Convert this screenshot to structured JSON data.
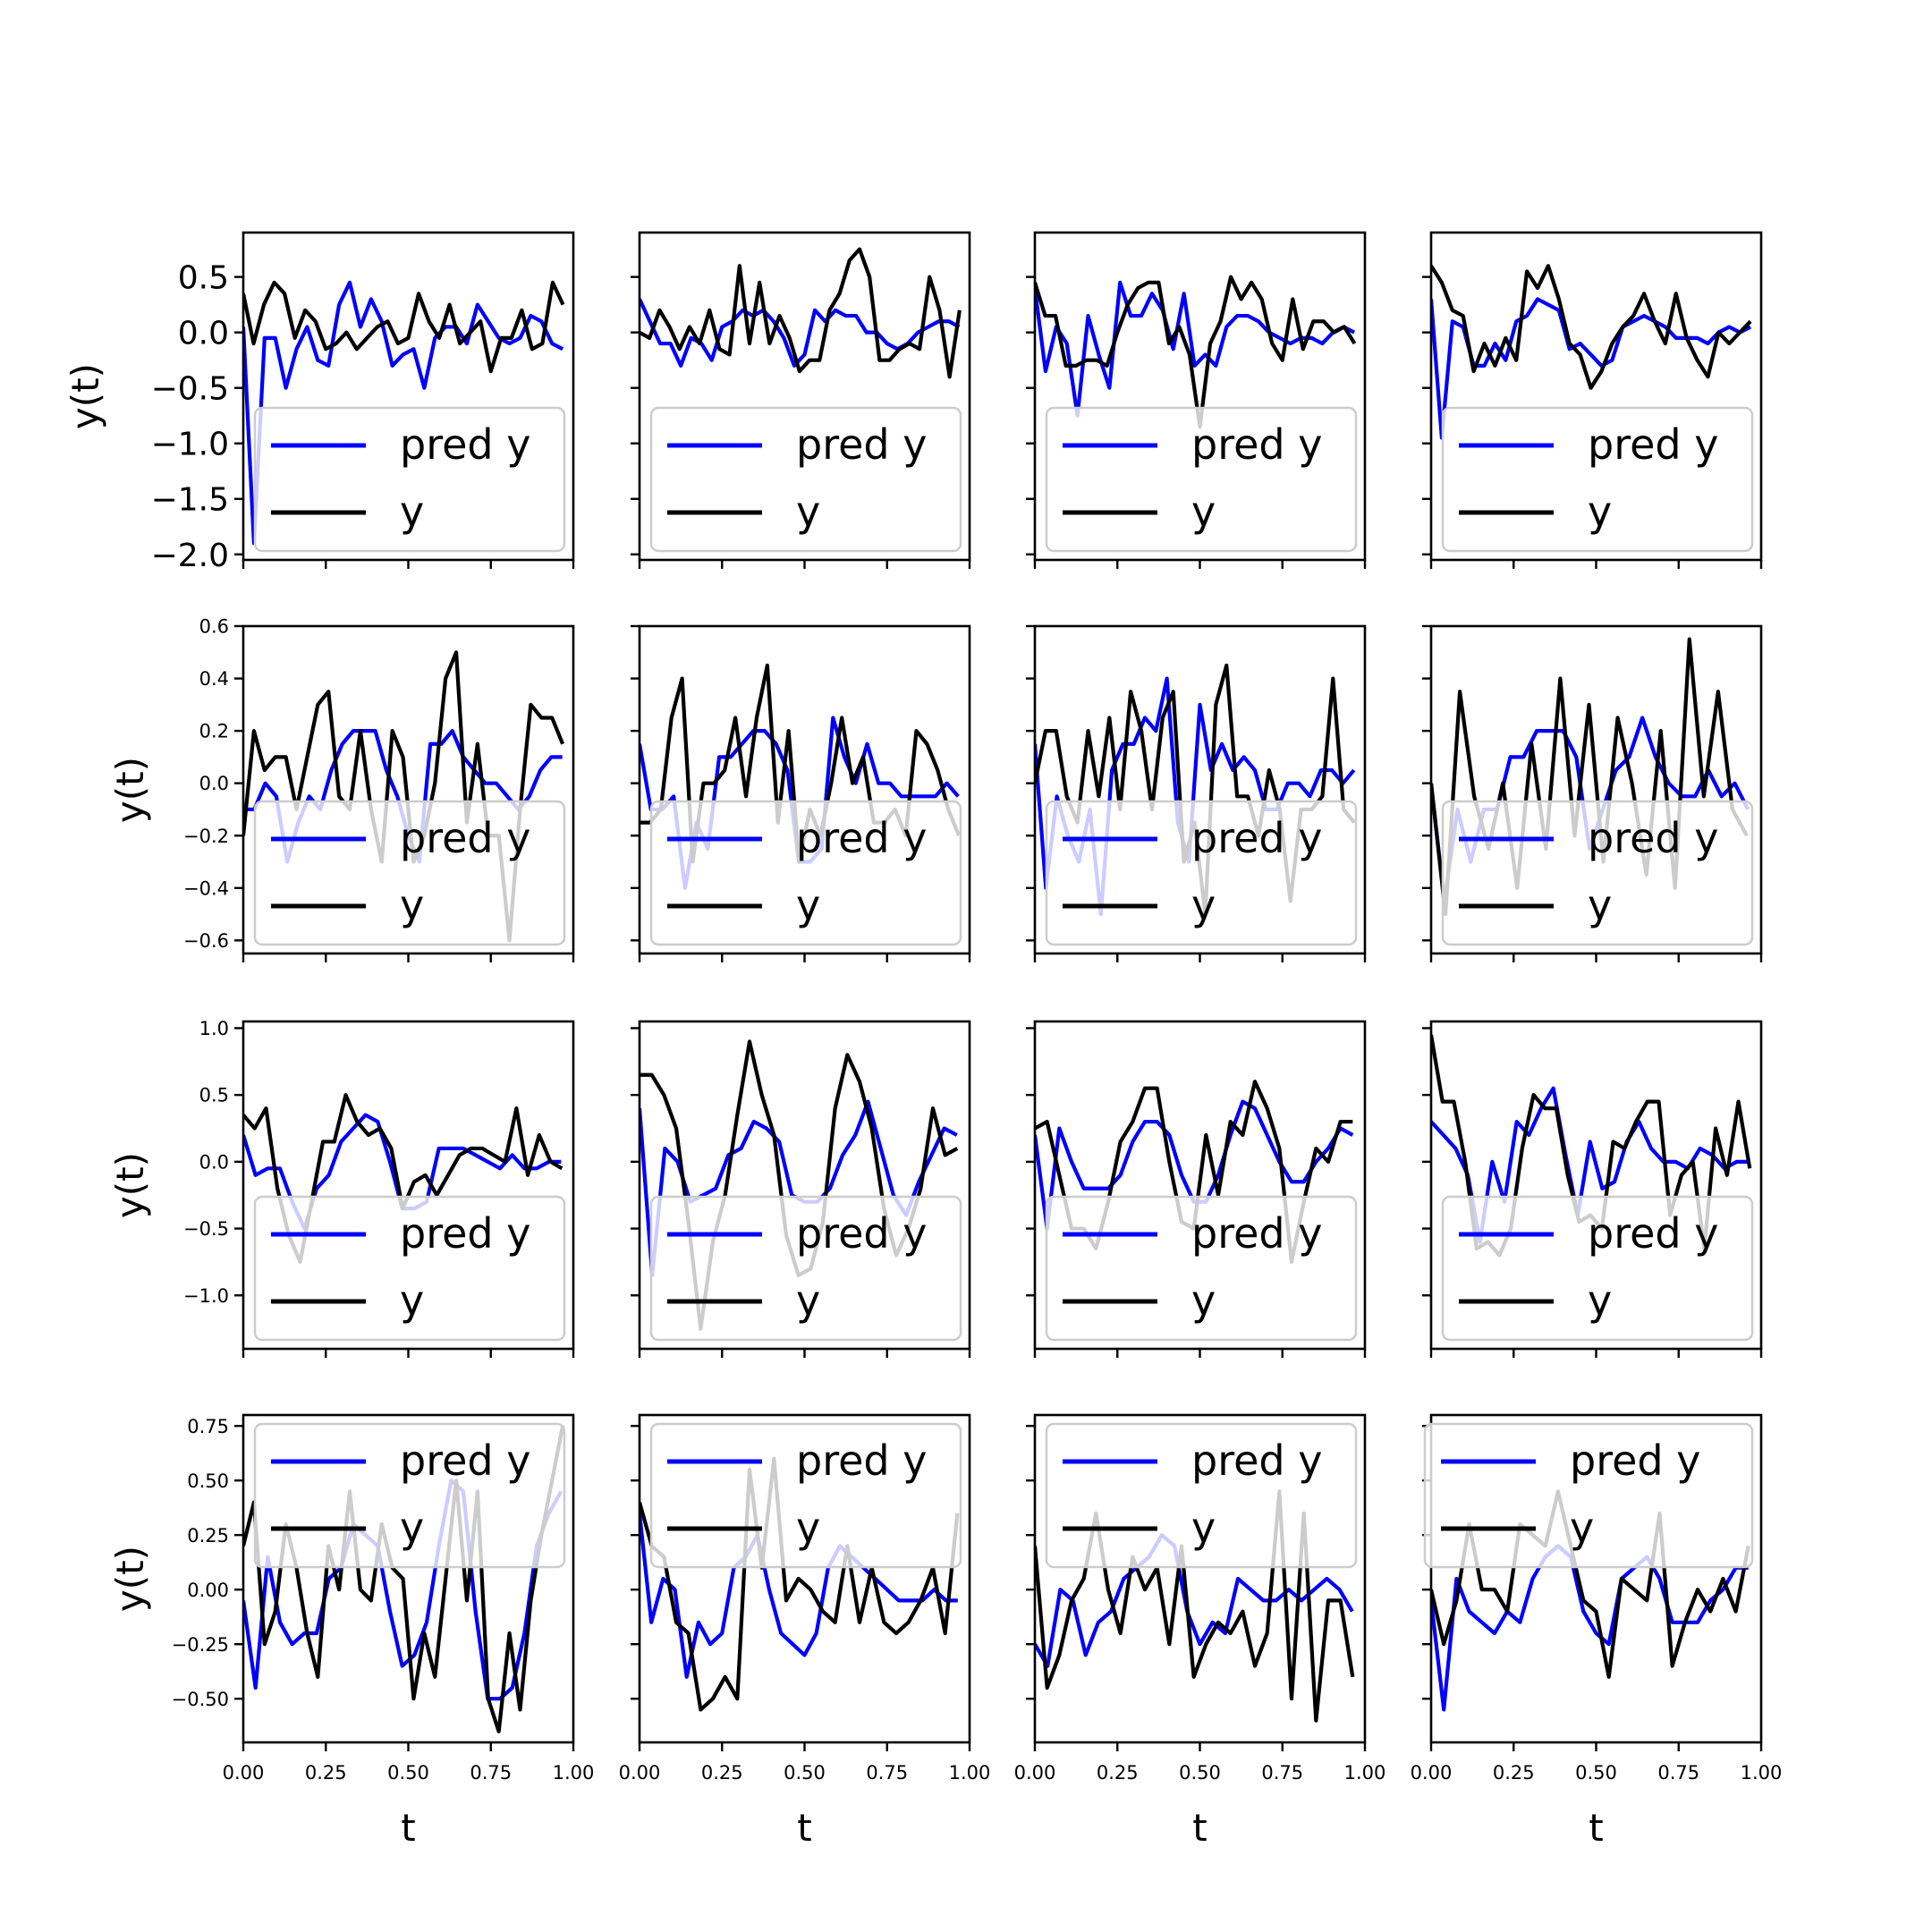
{
  "chart_data": {
    "type": "line",
    "layout": "4x4 grid of line subplots, shared x axis per column, shared y axis per row",
    "xlabel": "t",
    "ylabel": "y(t)",
    "xlim": [
      0,
      1
    ],
    "xticks": [
      "0.00",
      "0.25",
      "0.50",
      "0.75",
      "1.00"
    ],
    "legend": {
      "placement": "lower right",
      "entries": [
        {
          "label": "pred y",
          "color": "#0000ff"
        },
        {
          "label": "y",
          "color": "#000000"
        }
      ]
    },
    "rows": [
      {
        "ylim": [
          -2.05,
          0.9
        ],
        "ticks": [
          0.5,
          0.0,
          -0.5,
          -1.0,
          -1.5,
          -2.0
        ],
        "tick_labels": [
          "0.5",
          "0.0",
          "−0.5",
          "−1.0",
          "−1.5",
          "−2.0"
        ],
        "legend_placement": "lower right"
      },
      {
        "ylim": [
          -0.65,
          0.6
        ],
        "ticks": [
          0.6,
          0.4,
          0.2,
          0.0,
          -0.2,
          -0.4,
          -0.6
        ],
        "tick_labels": [
          "0.6",
          "0.4",
          "0.2",
          "0.0",
          "−0.2",
          "−0.4",
          "−0.6"
        ],
        "legend_placement": "lower right"
      },
      {
        "ylim": [
          -1.4,
          1.05
        ],
        "ticks": [
          1.0,
          0.5,
          0.0,
          -0.5,
          -1.0
        ],
        "tick_labels": [
          "1.0",
          "0.5",
          "0.0",
          "−0.5",
          "−1.0"
        ],
        "legend_placement": "lower right"
      },
      {
        "ylim": [
          -0.7,
          0.8
        ],
        "ticks": [
          0.75,
          0.5,
          0.25,
          0.0,
          -0.25,
          -0.5
        ],
        "tick_labels": [
          "0.75",
          "0.50",
          "0.25",
          "0.00",
          "−0.25",
          "−0.50"
        ],
        "legend_placement": "upper right"
      }
    ],
    "panels": [
      {
        "row": 0,
        "col": 0,
        "pred_y": [
          0.05,
          -1.9,
          -0.05,
          -0.05,
          -0.5,
          -0.15,
          0.05,
          -0.25,
          -0.3,
          0.25,
          0.45,
          0.05,
          0.3,
          0.1,
          -0.3,
          -0.2,
          -0.15,
          -0.5,
          -0.05,
          0.05,
          0.05,
          -0.1,
          0.25,
          0.1,
          -0.05,
          -0.1,
          -0.05,
          0.15,
          0.1,
          -0.1,
          -0.15
        ],
        "y": [
          0.35,
          -0.1,
          0.25,
          0.45,
          0.35,
          -0.05,
          0.2,
          0.1,
          -0.15,
          -0.1,
          0.0,
          -0.15,
          -0.05,
          0.05,
          0.1,
          -0.1,
          -0.05,
          0.35,
          0.1,
          -0.05,
          0.25,
          -0.1,
          0.0,
          0.1,
          -0.35,
          -0.05,
          -0.05,
          0.2,
          -0.15,
          -0.1,
          0.45,
          0.25
        ]
      },
      {
        "row": 0,
        "col": 1,
        "pred_y": [
          0.3,
          0.1,
          -0.1,
          -0.1,
          -0.3,
          -0.05,
          -0.1,
          -0.25,
          0.05,
          0.1,
          0.2,
          0.15,
          0.2,
          0.1,
          -0.05,
          -0.3,
          -0.2,
          0.2,
          0.1,
          0.2,
          0.15,
          0.15,
          0.0,
          0.0,
          -0.1,
          -0.15,
          -0.1,
          0.0,
          0.05,
          0.1,
          0.1,
          0.05
        ],
        "y": [
          0.0,
          -0.05,
          0.2,
          0.05,
          -0.15,
          0.05,
          -0.1,
          0.2,
          -0.15,
          -0.2,
          0.6,
          -0.1,
          0.45,
          -0.1,
          0.15,
          -0.05,
          -0.35,
          -0.25,
          -0.25,
          0.2,
          0.35,
          0.65,
          0.75,
          0.5,
          -0.25,
          -0.25,
          -0.15,
          -0.1,
          -0.15,
          0.5,
          0.2,
          -0.4,
          0.2
        ]
      },
      {
        "row": 0,
        "col": 2,
        "pred_y": [
          0.4,
          -0.35,
          0.05,
          -0.1,
          -0.75,
          0.15,
          -0.2,
          -0.5,
          0.45,
          0.15,
          0.15,
          0.35,
          0.2,
          -0.15,
          0.35,
          -0.3,
          -0.2,
          -0.3,
          0.05,
          0.15,
          0.15,
          0.1,
          0.0,
          -0.05,
          -0.1,
          -0.05,
          -0.05,
          -0.1,
          0.0,
          0.05,
          0.0
        ],
        "y": [
          0.45,
          0.15,
          0.15,
          -0.3,
          -0.3,
          -0.25,
          -0.25,
          -0.3,
          0.0,
          0.25,
          0.4,
          0.45,
          0.45,
          -0.1,
          0.05,
          -0.2,
          -0.85,
          -0.1,
          0.1,
          0.5,
          0.3,
          0.45,
          0.3,
          -0.1,
          -0.25,
          0.3,
          -0.15,
          0.1,
          0.1,
          0.0,
          0.05,
          -0.1
        ]
      },
      {
        "row": 0,
        "col": 3,
        "pred_y": [
          0.3,
          -0.95,
          0.1,
          0.05,
          -0.3,
          -0.3,
          -0.1,
          -0.25,
          0.1,
          0.15,
          0.3,
          0.25,
          0.2,
          -0.15,
          -0.1,
          -0.2,
          -0.3,
          -0.25,
          0.05,
          0.1,
          0.15,
          0.1,
          0.05,
          -0.05,
          -0.05,
          -0.05,
          -0.1,
          0.0,
          0.05,
          0.0,
          0.05
        ],
        "y": [
          0.6,
          0.45,
          0.2,
          0.15,
          -0.35,
          -0.1,
          -0.3,
          -0.05,
          -0.25,
          0.55,
          0.4,
          0.6,
          0.3,
          -0.1,
          -0.2,
          -0.5,
          -0.35,
          -0.1,
          0.05,
          0.15,
          0.35,
          0.1,
          -0.1,
          0.35,
          -0.05,
          -0.25,
          -0.4,
          0.0,
          -0.1,
          0.0,
          0.1
        ]
      },
      {
        "row": 1,
        "col": 0,
        "pred_y": [
          -0.1,
          -0.1,
          0.0,
          -0.05,
          -0.3,
          -0.15,
          -0.05,
          -0.1,
          0.05,
          0.15,
          0.2,
          0.2,
          0.2,
          0.05,
          -0.05,
          -0.2,
          -0.3,
          0.15,
          0.15,
          0.2,
          0.1,
          0.05,
          0.0,
          0.0,
          -0.05,
          -0.1,
          -0.05,
          0.05,
          0.1,
          0.1
        ],
        "y": [
          -0.2,
          0.2,
          0.05,
          0.1,
          0.1,
          -0.1,
          0.1,
          0.3,
          0.35,
          -0.05,
          -0.1,
          0.2,
          -0.1,
          -0.3,
          0.2,
          0.1,
          -0.3,
          -0.2,
          0.0,
          0.4,
          0.5,
          -0.15,
          0.15,
          -0.2,
          -0.2,
          -0.6,
          -0.1,
          0.3,
          0.25,
          0.25,
          0.15
        ]
      },
      {
        "row": 1,
        "col": 1,
        "pred_y": [
          0.15,
          -0.1,
          -0.1,
          -0.05,
          -0.4,
          -0.15,
          -0.25,
          0.1,
          0.1,
          0.15,
          0.2,
          0.2,
          0.15,
          0.05,
          -0.3,
          -0.3,
          -0.25,
          0.25,
          0.1,
          0.0,
          0.15,
          0.0,
          0.0,
          -0.05,
          -0.05,
          -0.05,
          -0.05,
          0.0,
          -0.05
        ],
        "y": [
          -0.15,
          -0.15,
          -0.1,
          0.25,
          0.4,
          -0.3,
          0.0,
          0.0,
          0.05,
          0.25,
          -0.05,
          0.25,
          0.45,
          -0.15,
          0.2,
          -0.3,
          -0.1,
          -0.2,
          0.0,
          0.25,
          0.0,
          0.1,
          -0.15,
          -0.15,
          -0.1,
          -0.2,
          0.2,
          0.15,
          0.05,
          -0.1,
          -0.2
        ]
      },
      {
        "row": 1,
        "col": 2,
        "pred_y": [
          0.15,
          -0.4,
          -0.05,
          -0.2,
          -0.3,
          -0.1,
          -0.5,
          0.05,
          0.15,
          0.15,
          0.25,
          0.2,
          0.4,
          -0.15,
          -0.3,
          0.3,
          0.05,
          0.15,
          0.05,
          0.1,
          0.05,
          -0.1,
          -0.1,
          0.0,
          0.0,
          -0.05,
          0.05,
          0.05,
          0.0,
          0.05
        ],
        "y": [
          0.0,
          0.2,
          0.2,
          -0.05,
          -0.15,
          0.2,
          -0.05,
          0.25,
          -0.1,
          0.35,
          0.2,
          -0.1,
          0.25,
          0.35,
          -0.3,
          -0.15,
          -0.5,
          0.3,
          0.45,
          -0.05,
          -0.05,
          -0.2,
          0.05,
          -0.1,
          -0.45,
          -0.1,
          -0.1,
          -0.05,
          0.4,
          -0.1,
          -0.15
        ]
      },
      {
        "row": 1,
        "col": 3,
        "pred_y": [
          0.0,
          -0.45,
          -0.1,
          -0.3,
          -0.1,
          -0.1,
          0.1,
          0.1,
          0.2,
          0.2,
          0.2,
          0.1,
          -0.25,
          -0.1,
          0.05,
          0.1,
          0.25,
          0.1,
          0.0,
          -0.05,
          -0.05,
          0.05,
          -0.05,
          0.0,
          -0.1
        ],
        "y": [
          0.0,
          -0.5,
          0.35,
          -0.05,
          -0.25,
          0.0,
          -0.4,
          0.15,
          -0.25,
          0.4,
          -0.2,
          0.3,
          -0.3,
          0.25,
          0.0,
          -0.35,
          0.2,
          -0.4,
          0.55,
          -0.05,
          0.35,
          -0.1,
          -0.2
        ]
      },
      {
        "row": 2,
        "col": 0,
        "pred_y": [
          0.2,
          -0.1,
          -0.05,
          -0.05,
          -0.3,
          -0.5,
          -0.2,
          -0.1,
          0.15,
          0.25,
          0.35,
          0.3,
          0.0,
          -0.35,
          -0.35,
          -0.3,
          0.1,
          0.1,
          0.1,
          0.05,
          0.0,
          -0.05,
          0.05,
          -0.05,
          -0.05,
          0.0,
          0.0
        ],
        "y": [
          0.35,
          0.25,
          0.4,
          -0.2,
          -0.55,
          -0.75,
          -0.3,
          0.15,
          0.15,
          0.5,
          0.3,
          0.2,
          0.25,
          0.1,
          -0.35,
          -0.15,
          -0.1,
          -0.25,
          -0.1,
          0.05,
          0.1,
          0.1,
          0.05,
          0.0,
          0.4,
          -0.1,
          0.2,
          0.0,
          -0.05
        ]
      },
      {
        "row": 2,
        "col": 1,
        "pred_y": [
          0.4,
          -0.85,
          0.1,
          0.0,
          -0.3,
          -0.25,
          -0.2,
          0.05,
          0.1,
          0.3,
          0.25,
          0.15,
          -0.25,
          -0.3,
          -0.3,
          -0.2,
          0.05,
          0.2,
          0.45,
          0.1,
          -0.25,
          -0.4,
          -0.15,
          0.05,
          0.25,
          0.2
        ],
        "y": [
          0.65,
          0.65,
          0.5,
          0.25,
          -0.45,
          -1.25,
          -0.6,
          -0.25,
          0.35,
          0.9,
          0.5,
          0.2,
          -0.55,
          -0.85,
          -0.8,
          -0.45,
          0.4,
          0.8,
          0.6,
          0.25,
          -0.35,
          -0.7,
          -0.5,
          -0.2,
          0.4,
          0.05,
          0.1
        ]
      },
      {
        "row": 2,
        "col": 2,
        "pred_y": [
          0.2,
          -0.5,
          0.25,
          0.0,
          -0.2,
          -0.2,
          -0.2,
          -0.1,
          0.15,
          0.3,
          0.3,
          0.2,
          -0.1,
          -0.3,
          -0.3,
          -0.1,
          0.2,
          0.45,
          0.4,
          0.2,
          0.0,
          -0.15,
          -0.15,
          0.0,
          0.1,
          0.25,
          0.2
        ],
        "y": [
          0.25,
          0.3,
          -0.1,
          -0.5,
          -0.5,
          -0.65,
          -0.3,
          0.15,
          0.3,
          0.55,
          0.55,
          0.0,
          -0.45,
          -0.5,
          0.2,
          -0.25,
          0.3,
          0.2,
          0.6,
          0.4,
          0.1,
          -0.75,
          -0.3,
          0.1,
          0.0,
          0.3,
          0.3
        ]
      },
      {
        "row": 2,
        "col": 3,
        "pred_y": [
          0.3,
          0.2,
          0.1,
          -0.1,
          -0.6,
          0.0,
          -0.3,
          0.3,
          0.2,
          0.4,
          0.55,
          0.05,
          -0.4,
          0.15,
          -0.2,
          -0.15,
          0.15,
          0.3,
          0.1,
          0.0,
          0.0,
          -0.05,
          0.1,
          0.05,
          -0.05,
          0.0,
          0.0
        ],
        "y": [
          0.95,
          0.45,
          0.45,
          0.0,
          -0.65,
          -0.6,
          -0.7,
          -0.5,
          0.1,
          0.5,
          0.4,
          0.4,
          -0.1,
          -0.45,
          -0.4,
          -0.5,
          0.15,
          0.1,
          0.3,
          0.45,
          0.45,
          -0.4,
          -0.1,
          0.0,
          -0.65,
          0.25,
          -0.1,
          0.45,
          -0.05
        ]
      },
      {
        "row": 3,
        "col": 0,
        "pred_y": [
          -0.05,
          -0.45,
          0.15,
          -0.15,
          -0.25,
          -0.2,
          -0.2,
          0.05,
          0.1,
          0.3,
          0.25,
          0.2,
          -0.1,
          -0.35,
          -0.3,
          -0.15,
          0.2,
          0.5,
          0.45,
          -0.1,
          -0.5,
          -0.5,
          -0.45,
          -0.2,
          0.2,
          0.35,
          0.45
        ],
        "y": [
          0.2,
          0.4,
          -0.25,
          -0.1,
          0.3,
          0.1,
          -0.2,
          -0.4,
          0.2,
          0.0,
          0.45,
          0.0,
          -0.05,
          0.3,
          0.1,
          0.05,
          -0.5,
          -0.2,
          -0.4,
          0.05,
          0.5,
          -0.05,
          0.45,
          -0.5,
          -0.65,
          -0.2,
          -0.55,
          -0.05,
          0.25,
          0.5,
          0.75
        ]
      },
      {
        "row": 3,
        "col": 1,
        "pred_y": [
          0.35,
          -0.15,
          0.05,
          0.0,
          -0.4,
          -0.15,
          -0.25,
          -0.2,
          0.1,
          0.15,
          0.25,
          0.0,
          -0.2,
          -0.25,
          -0.3,
          -0.2,
          0.1,
          0.2,
          0.15,
          0.1,
          0.05,
          0.0,
          -0.05,
          -0.05,
          -0.05,
          0.0,
          -0.05,
          -0.05
        ],
        "y": [
          0.4,
          0.2,
          0.15,
          -0.15,
          -0.2,
          -0.55,
          -0.5,
          -0.4,
          -0.5,
          0.55,
          0.1,
          0.6,
          -0.05,
          0.05,
          0.0,
          -0.1,
          -0.15,
          0.2,
          -0.15,
          0.1,
          -0.15,
          -0.2,
          -0.15,
          -0.05,
          0.1,
          -0.2,
          0.35
        ]
      },
      {
        "row": 3,
        "col": 2,
        "pred_y": [
          -0.25,
          -0.35,
          0.0,
          -0.05,
          -0.3,
          -0.15,
          -0.1,
          0.05,
          0.1,
          0.15,
          0.25,
          0.2,
          -0.1,
          -0.25,
          -0.15,
          -0.2,
          0.05,
          0.0,
          -0.05,
          -0.05,
          0.0,
          -0.05,
          0.0,
          0.05,
          0.0,
          -0.1
        ],
        "y": [
          0.2,
          -0.45,
          -0.3,
          -0.05,
          0.05,
          0.35,
          0.0,
          -0.2,
          0.15,
          0.0,
          0.1,
          -0.25,
          0.2,
          -0.4,
          -0.25,
          -0.15,
          -0.2,
          -0.1,
          -0.35,
          -0.2,
          0.45,
          -0.5,
          0.35,
          -0.6,
          -0.05,
          -0.05,
          -0.4
        ]
      },
      {
        "row": 3,
        "col": 3,
        "pred_y": [
          -0.05,
          -0.55,
          0.05,
          -0.1,
          -0.15,
          -0.2,
          -0.1,
          -0.15,
          0.05,
          0.15,
          0.2,
          0.15,
          -0.1,
          -0.2,
          -0.25,
          0.05,
          0.1,
          0.15,
          0.05,
          -0.15,
          -0.15,
          -0.15,
          -0.05,
          0.0,
          0.1,
          0.1
        ],
        "y": [
          0.0,
          -0.25,
          -0.05,
          0.3,
          0.0,
          0.0,
          -0.1,
          0.3,
          0.25,
          0.2,
          0.45,
          0.2,
          -0.05,
          -0.1,
          -0.4,
          0.05,
          0.0,
          -0.05,
          0.35,
          -0.35,
          -0.15,
          0.0,
          -0.1,
          0.05,
          -0.1,
          0.2
        ]
      }
    ]
  }
}
